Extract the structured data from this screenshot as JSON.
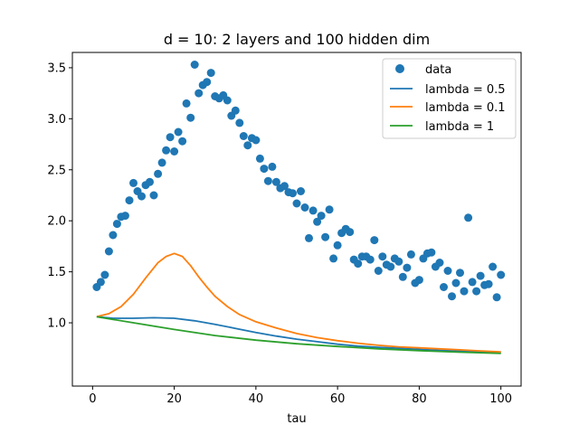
{
  "chart_data": {
    "type": "scatter",
    "title": "d = 10: 2 layers and 100 hidden dim",
    "xlabel": "tau",
    "ylabel": "",
    "xlim": [
      -4.95,
      104.95
    ],
    "ylim": [
      0.38,
      3.65
    ],
    "xticks": [
      0,
      20,
      40,
      60,
      80,
      100
    ],
    "xtick_labels": [
      "0",
      "20",
      "40",
      "60",
      "80",
      "100"
    ],
    "yticks": [
      1.0,
      1.5,
      2.0,
      2.5,
      3.0,
      3.5
    ],
    "ytick_labels": [
      "1.0",
      "1.5",
      "2.0",
      "2.5",
      "3.0",
      "3.5"
    ],
    "grid": false,
    "legend_position": "top-right",
    "scatter": {
      "name": "data",
      "color": "#1f77b4",
      "x": [
        1,
        2,
        3,
        4,
        5,
        6,
        7,
        8,
        9,
        10,
        11,
        12,
        13,
        14,
        15,
        16,
        17,
        18,
        19,
        20,
        21,
        22,
        23,
        24,
        25,
        26,
        27,
        28,
        29,
        30,
        31,
        32,
        33,
        34,
        35,
        36,
        37,
        38,
        39,
        40,
        41,
        42,
        43,
        44,
        45,
        46,
        47,
        48,
        49,
        50,
        51,
        52,
        53,
        54,
        55,
        56,
        57,
        58,
        59,
        60,
        61,
        62,
        63,
        64,
        65,
        66,
        67,
        68,
        69,
        70,
        71,
        72,
        73,
        74,
        75,
        76,
        77,
        78,
        79,
        80,
        81,
        82,
        83,
        84,
        85,
        86,
        87,
        88,
        89,
        90,
        91,
        92,
        93,
        94,
        95,
        96,
        97,
        98,
        99,
        100
      ],
      "y": [
        1.35,
        1.4,
        1.47,
        1.7,
        1.86,
        1.97,
        2.04,
        2.05,
        2.2,
        2.37,
        2.29,
        2.24,
        2.35,
        2.38,
        2.25,
        2.46,
        2.57,
        2.69,
        2.82,
        2.68,
        2.87,
        2.78,
        3.15,
        3.01,
        3.53,
        3.25,
        3.33,
        3.36,
        3.45,
        3.22,
        3.2,
        3.23,
        3.18,
        3.03,
        3.08,
        2.96,
        2.83,
        2.74,
        2.81,
        2.79,
        2.61,
        2.51,
        2.39,
        2.53,
        2.38,
        2.32,
        2.34,
        2.28,
        2.27,
        2.17,
        2.29,
        2.13,
        1.83,
        2.1,
        1.99,
        2.05,
        1.84,
        2.11,
        1.63,
        1.76,
        1.88,
        1.92,
        1.89,
        1.62,
        1.58,
        1.65,
        1.65,
        1.62,
        1.81,
        1.51,
        1.65,
        1.57,
        1.55,
        1.63,
        1.6,
        1.45,
        1.54,
        1.67,
        1.39,
        1.42,
        1.63,
        1.68,
        1.69,
        1.55,
        1.59,
        1.35,
        1.51,
        1.26,
        1.39,
        1.49,
        1.31,
        2.03,
        1.4,
        1.31,
        1.46,
        1.37,
        1.38,
        1.55,
        1.25,
        1.47
      ]
    },
    "series": [
      {
        "name": "lambda = 0.5",
        "color": "#1f77b4",
        "x": [
          1,
          5,
          10,
          15,
          20,
          25,
          30,
          35,
          40,
          45,
          50,
          55,
          60,
          65,
          70,
          75,
          80,
          85,
          90,
          95,
          100
        ],
        "y": [
          1.06,
          1.045,
          1.045,
          1.05,
          1.045,
          1.02,
          0.985,
          0.945,
          0.905,
          0.87,
          0.84,
          0.815,
          0.79,
          0.772,
          0.76,
          0.75,
          0.74,
          0.73,
          0.722,
          0.716,
          0.71
        ]
      },
      {
        "name": "lambda = 0.1",
        "color": "#ff7f0e",
        "x": [
          1,
          4,
          7,
          10,
          13,
          16,
          18,
          20,
          22,
          24,
          26,
          28,
          30,
          33,
          36,
          40,
          45,
          50,
          55,
          60,
          65,
          70,
          75,
          80,
          85,
          90,
          95,
          100
        ],
        "y": [
          1.06,
          1.09,
          1.16,
          1.28,
          1.44,
          1.59,
          1.65,
          1.68,
          1.65,
          1.56,
          1.45,
          1.35,
          1.26,
          1.16,
          1.08,
          1.01,
          0.95,
          0.895,
          0.855,
          0.825,
          0.8,
          0.78,
          0.765,
          0.755,
          0.745,
          0.735,
          0.725,
          0.715
        ]
      },
      {
        "name": "lambda = 1",
        "color": "#2ca02c",
        "x": [
          1,
          10,
          20,
          30,
          40,
          50,
          60,
          70,
          80,
          90,
          100
        ],
        "y": [
          1.06,
          1.0,
          0.935,
          0.875,
          0.83,
          0.795,
          0.768,
          0.745,
          0.727,
          0.712,
          0.7
        ]
      }
    ],
    "legend": [
      "data",
      "lambda = 0.5",
      "lambda = 0.1",
      "lambda = 1"
    ]
  }
}
